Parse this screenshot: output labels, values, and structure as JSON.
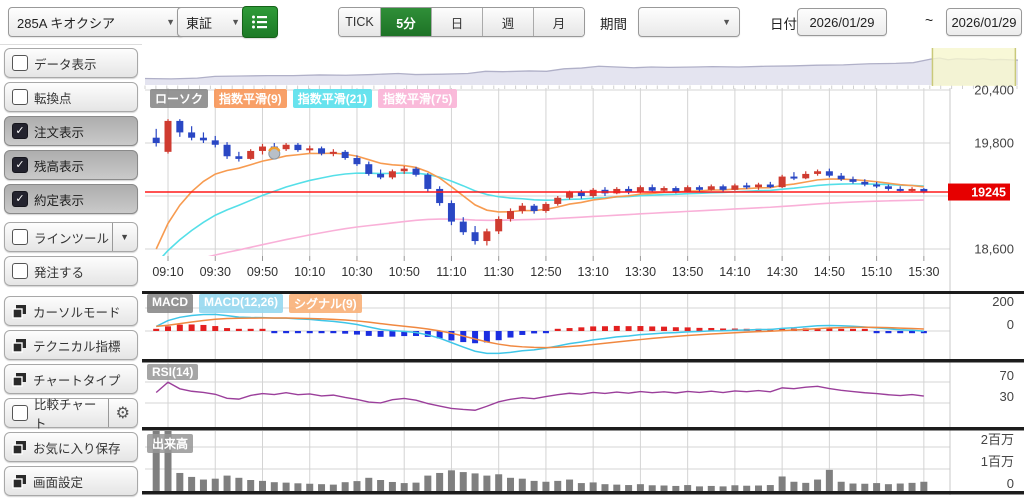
{
  "toolbar": {
    "symbol_select": "285A キオクシア",
    "exchange_select": "東証",
    "intervals": [
      "TICK",
      "5分",
      "日",
      "週",
      "月"
    ],
    "active_interval": "5分",
    "period_label": "期間",
    "period_value": "",
    "date_label": "日付",
    "date_from": "2026/01/29",
    "date_to": "2026/01/29"
  },
  "icons": {
    "check": "✓",
    "dropdown_arrow": "▼",
    "gear": "⚙"
  },
  "sidebar": {
    "items": [
      {
        "name": "toggle-data-display",
        "type": "toggle",
        "label": "データ表示",
        "checked": false
      },
      {
        "name": "toggle-inflection-point",
        "type": "toggle",
        "label": "転換点",
        "checked": false
      },
      {
        "name": "toggle-order-display",
        "type": "toggle",
        "label": "注文表示",
        "checked": true
      },
      {
        "name": "toggle-balance-display",
        "type": "toggle",
        "label": "残高表示",
        "checked": true
      },
      {
        "name": "toggle-execution-display",
        "type": "toggle",
        "label": "約定表示",
        "checked": true
      },
      {
        "name": "toggle-line-tool",
        "type": "toggle-dropdown",
        "label": "ラインツール",
        "checked": false,
        "gap": 8
      },
      {
        "name": "toggle-place-order",
        "type": "toggle",
        "label": "発注する",
        "checked": false
      },
      {
        "name": "button-cursor-mode",
        "type": "window-button",
        "label": "カーソルモード",
        "gap": 10
      },
      {
        "name": "button-technical-indicator",
        "type": "window-button",
        "label": "テクニカル指標"
      },
      {
        "name": "button-chart-type",
        "type": "window-button",
        "label": "チャートタイプ"
      },
      {
        "name": "toggle-compare-chart",
        "type": "toggle-gear",
        "label": "比較チャート",
        "checked": false
      },
      {
        "name": "button-save-favorite",
        "type": "window-button",
        "label": "お気に入り保存"
      },
      {
        "name": "button-screen-settings",
        "type": "window-button",
        "label": "画面設定"
      }
    ]
  },
  "chart": {
    "legends_main": [
      {
        "name": "legend-candle",
        "text": "ローソク",
        "bg": "rgba(130,130,130,0.85)"
      },
      {
        "name": "legend-ema9",
        "text": "指数平滑(9)",
        "bg": "rgba(247,150,88,0.90)"
      },
      {
        "name": "legend-ema21",
        "text": "指数平滑(21)",
        "bg": "rgba(88,224,236,0.90)"
      },
      {
        "name": "legend-ema75",
        "text": "指数平滑(75)",
        "bg": "rgba(250,182,216,0.95)"
      }
    ],
    "legends_macd": [
      {
        "name": "legend-macd-title",
        "text": "MACD",
        "bg": "rgba(130,130,130,0.85)"
      },
      {
        "name": "legend-macd-line",
        "text": "MACD(12,26)",
        "bg": "rgba(150,216,240,0.90)"
      },
      {
        "name": "legend-macd-signal",
        "text": "シグナル(9)",
        "bg": "rgba(248,176,120,0.90)"
      }
    ],
    "legends_rsi": [
      {
        "name": "legend-rsi",
        "text": "RSI(14)",
        "bg": "rgba(150,150,150,0.85)"
      }
    ],
    "legends_vol": [
      {
        "name": "legend-volume",
        "text": "出来高",
        "bg": "rgba(150,150,150,0.85)"
      }
    ],
    "y_axis_labels": [
      {
        "text": "20,400",
        "price": 20400
      },
      {
        "text": "19,800",
        "price": 19800
      },
      {
        "text": "18,600",
        "price": 18600
      }
    ],
    "grid_prices": [
      20400,
      19800,
      19200,
      18600
    ],
    "price_line": {
      "value": 19245,
      "label": "19245",
      "color": "#e60000"
    },
    "time_labels": [
      "09:10",
      "09:30",
      "09:50",
      "10:10",
      "10:30",
      "10:50",
      "11:10",
      "11:30",
      "12:50",
      "13:10",
      "13:30",
      "13:50",
      "14:10",
      "14:30",
      "14:50",
      "15:10",
      "15:30"
    ],
    "macd_axis": [
      {
        "text": "200",
        "value": 200
      },
      {
        "text": "0",
        "value": 0
      }
    ],
    "rsi_axis": [
      {
        "text": "70",
        "value": 70
      },
      {
        "text": "30",
        "value": 30
      }
    ],
    "volume_axis": [
      {
        "text": "2百万",
        "value": 2000000
      },
      {
        "text": "1百万",
        "value": 1000000
      },
      {
        "text": "0",
        "value": 0
      }
    ],
    "colors": {
      "candle_up": "#cf3b30",
      "candle_down": "#2a47c4",
      "ema9": "#f79b50",
      "ema21": "#55dfe8",
      "ema75": "#f9b0d8",
      "macd_line": "#3fc6e8",
      "signal_line": "#f08840",
      "hist_pos": "#e32020",
      "hist_neg": "#1b2ee0",
      "rsi": "#9b3f9b",
      "volume": "#7f7f7f",
      "grid": "#d4d4d4",
      "separator": "#1c1c1c",
      "nav_fill": "#e4e4f0",
      "nav_line": "#b0b0c8",
      "nav_selection": "#f6f6cd",
      "nav_selection_edge": "#c9c97a"
    }
  },
  "chart_data": {
    "type": "candlestick",
    "title": "285A キオクシア 5分足 2026/01/29",
    "interval": "5分",
    "last_price": 19245,
    "y_range": [
      18400,
      20500
    ],
    "candles": [
      [
        "09:05",
        19860,
        19960,
        19760,
        19800,
        2850000
      ],
      [
        "09:10",
        19700,
        20070,
        19680,
        20050,
        2950000
      ],
      [
        "09:15",
        20050,
        20070,
        19870,
        19920,
        820000
      ],
      [
        "09:20",
        19920,
        19990,
        19830,
        19860,
        640000
      ],
      [
        "09:25",
        19860,
        19920,
        19800,
        19830,
        520000
      ],
      [
        "09:30",
        19830,
        19880,
        19750,
        19780,
        560000
      ],
      [
        "09:35",
        19780,
        19810,
        19620,
        19650,
        700000
      ],
      [
        "09:40",
        19650,
        19700,
        19590,
        19620,
        600000
      ],
      [
        "09:45",
        19620,
        19730,
        19610,
        19710,
        500000
      ],
      [
        "09:50",
        19710,
        19790,
        19670,
        19760,
        460000
      ],
      [
        "09:55",
        19760,
        19800,
        19700,
        19730,
        400000
      ],
      [
        "10:00",
        19730,
        19800,
        19710,
        19780,
        380000
      ],
      [
        "10:05",
        19780,
        19800,
        19700,
        19720,
        350000
      ],
      [
        "10:10",
        19720,
        19770,
        19690,
        19740,
        330000
      ],
      [
        "10:15",
        19740,
        19760,
        19660,
        19680,
        310000
      ],
      [
        "10:20",
        19680,
        19730,
        19650,
        19700,
        290000
      ],
      [
        "10:25",
        19700,
        19720,
        19610,
        19630,
        400000
      ],
      [
        "10:30",
        19630,
        19660,
        19540,
        19560,
        450000
      ],
      [
        "10:35",
        19560,
        19590,
        19430,
        19450,
        600000
      ],
      [
        "10:40",
        19450,
        19500,
        19390,
        19410,
        500000
      ],
      [
        "10:45",
        19410,
        19500,
        19390,
        19480,
        410000
      ],
      [
        "10:50",
        19480,
        19540,
        19450,
        19510,
        360000
      ],
      [
        "10:55",
        19510,
        19530,
        19420,
        19440,
        380000
      ],
      [
        "11:00",
        19440,
        19460,
        19250,
        19280,
        700000
      ],
      [
        "11:05",
        19280,
        19310,
        19090,
        19120,
        820000
      ],
      [
        "11:10",
        19120,
        19150,
        18870,
        18910,
        940000
      ],
      [
        "11:15",
        18910,
        18960,
        18760,
        18790,
        860000
      ],
      [
        "11:20",
        18790,
        18860,
        18650,
        18690,
        800000
      ],
      [
        "11:25",
        18690,
        18830,
        18640,
        18800,
        700000
      ],
      [
        "11:30",
        18800,
        18970,
        18770,
        18940,
        760000
      ],
      [
        "12:35",
        18940,
        19060,
        18910,
        19030,
        600000
      ],
      [
        "12:40",
        19030,
        19120,
        19000,
        19090,
        560000
      ],
      [
        "12:45",
        19090,
        19110,
        19000,
        19030,
        460000
      ],
      [
        "12:50",
        19030,
        19130,
        19010,
        19110,
        420000
      ],
      [
        "12:55",
        19110,
        19200,
        19090,
        19180,
        460000
      ],
      [
        "13:00",
        19180,
        19260,
        19160,
        19240,
        520000
      ],
      [
        "13:05",
        19240,
        19270,
        19170,
        19200,
        360000
      ],
      [
        "13:10",
        19200,
        19290,
        19180,
        19270,
        390000
      ],
      [
        "13:15",
        19270,
        19300,
        19200,
        19230,
        310000
      ],
      [
        "13:20",
        19230,
        19300,
        19220,
        19280,
        290000
      ],
      [
        "13:25",
        19280,
        19310,
        19220,
        19240,
        270000
      ],
      [
        "13:30",
        19240,
        19320,
        19230,
        19300,
        310000
      ],
      [
        "13:35",
        19300,
        19330,
        19240,
        19260,
        260000
      ],
      [
        "13:40",
        19260,
        19310,
        19240,
        19290,
        250000
      ],
      [
        "13:45",
        19290,
        19310,
        19230,
        19250,
        230000
      ],
      [
        "13:50",
        19250,
        19320,
        19240,
        19300,
        270000
      ],
      [
        "13:55",
        19300,
        19320,
        19250,
        19270,
        210000
      ],
      [
        "14:00",
        19270,
        19330,
        19260,
        19310,
        230000
      ],
      [
        "14:05",
        19310,
        19330,
        19250,
        19270,
        210000
      ],
      [
        "14:10",
        19270,
        19340,
        19260,
        19320,
        260000
      ],
      [
        "14:15",
        19320,
        19350,
        19280,
        19300,
        240000
      ],
      [
        "14:20",
        19300,
        19350,
        19270,
        19330,
        250000
      ],
      [
        "14:25",
        19330,
        19360,
        19290,
        19300,
        270000
      ],
      [
        "14:30",
        19300,
        19440,
        19290,
        19420,
        660000
      ],
      [
        "14:35",
        19420,
        19470,
        19380,
        19400,
        420000
      ],
      [
        "14:40",
        19400,
        19480,
        19390,
        19450,
        370000
      ],
      [
        "14:45",
        19450,
        19500,
        19430,
        19480,
        520000
      ],
      [
        "14:50",
        19480,
        19510,
        19410,
        19430,
        960000
      ],
      [
        "14:55",
        19430,
        19460,
        19370,
        19390,
        420000
      ],
      [
        "15:00",
        19390,
        19420,
        19340,
        19360,
        340000
      ],
      [
        "15:05",
        19360,
        19390,
        19310,
        19330,
        330000
      ],
      [
        "15:10",
        19330,
        19360,
        19290,
        19310,
        360000
      ],
      [
        "15:15",
        19310,
        19330,
        19260,
        19280,
        310000
      ],
      [
        "15:20",
        19280,
        19310,
        19240,
        19260,
        340000
      ],
      [
        "15:25",
        19260,
        19300,
        19240,
        19280,
        370000
      ],
      [
        "15:30",
        19280,
        19290,
        19230,
        19245,
        420000
      ]
    ],
    "indicators": {
      "ema_periods": [
        9,
        21,
        75
      ],
      "ema_seed": 18300,
      "macd": {
        "fast": 12,
        "slow": 26,
        "signal": 9,
        "seed": 19300
      },
      "rsi_period": 14
    },
    "execution_marker": {
      "candle_index": 10,
      "price": 19680
    },
    "navigator": {
      "points": [
        [
          0,
          82
        ],
        [
          3,
          83
        ],
        [
          6,
          81
        ],
        [
          8,
          76
        ],
        [
          11,
          75
        ],
        [
          14,
          74
        ],
        [
          17,
          74
        ],
        [
          20,
          72
        ],
        [
          23,
          73
        ],
        [
          26,
          71
        ],
        [
          29,
          68
        ],
        [
          31,
          71
        ],
        [
          34,
          70
        ],
        [
          37,
          68
        ],
        [
          39,
          62
        ],
        [
          41,
          63
        ],
        [
          44,
          61
        ],
        [
          46,
          62
        ],
        [
          48,
          55
        ],
        [
          50,
          53
        ],
        [
          52,
          48
        ],
        [
          54,
          50
        ],
        [
          56,
          52
        ],
        [
          58,
          50
        ],
        [
          60,
          51
        ],
        [
          63,
          50
        ],
        [
          65,
          49
        ],
        [
          68,
          50
        ],
        [
          71,
          48
        ],
        [
          74,
          47
        ],
        [
          77,
          45
        ],
        [
          80,
          44
        ],
        [
          83,
          41
        ],
        [
          86,
          40
        ],
        [
          88,
          38
        ],
        [
          90,
          28
        ],
        [
          91,
          25
        ],
        [
          92,
          30
        ],
        [
          93,
          27
        ],
        [
          95,
          29
        ],
        [
          96,
          27
        ],
        [
          97,
          30
        ],
        [
          98,
          29
        ],
        [
          100,
          31
        ]
      ],
      "selection": [
        90.2,
        99.7
      ]
    }
  }
}
